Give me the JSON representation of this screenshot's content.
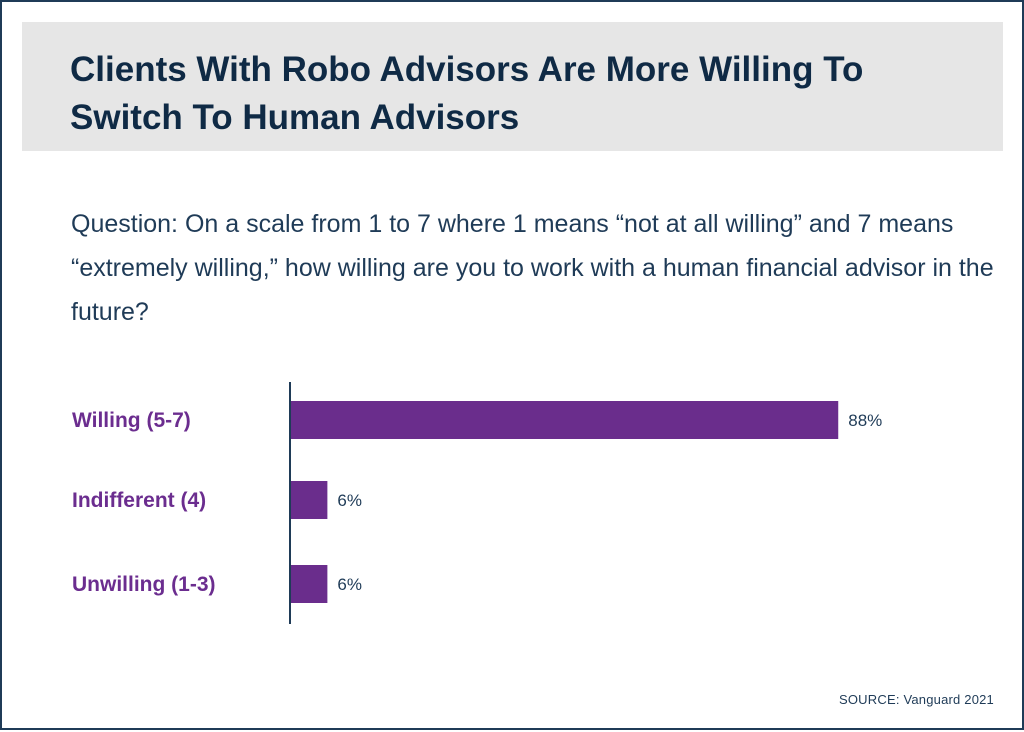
{
  "title": "Clients With Robo Advisors Are More Willing To Switch To Human Advisors",
  "question": "Question: On a scale from 1 to 7 where 1 means “not at all willing” and 7 means “extremely willing,” how willing are you to work with a human financial advisor in the future?",
  "footer": "SOURCE: Vanguard 2021",
  "colors": {
    "bar": "#6a2d8c",
    "label": "#6b2d8f",
    "title": "#0f2a45",
    "text": "#1f3b57",
    "axis": "#1f3b57",
    "band": "#e6e6e6"
  },
  "chart_data": {
    "type": "bar",
    "orientation": "horizontal",
    "categories": [
      "Willing (5-7)",
      "Indifferent (4)",
      "Unwilling (1-3)"
    ],
    "values": [
      88,
      6,
      6
    ],
    "value_labels": [
      "88%",
      "6%",
      "6%"
    ],
    "unit": "%",
    "xlim": [
      0,
      100
    ],
    "grid": false,
    "legend": "none"
  }
}
